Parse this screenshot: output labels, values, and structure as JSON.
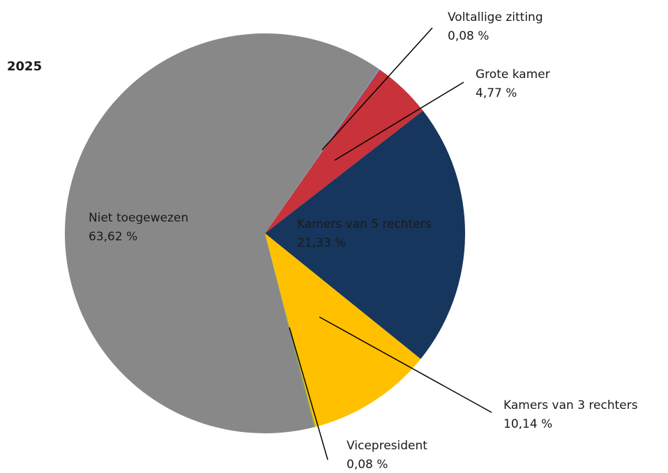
{
  "chart_data": {
    "type": "pie",
    "title": "2025",
    "categories": [
      "Voltallige zitting",
      "Grote kamer",
      "Kamers van 5 rechters",
      "Kamers van 3 rechters",
      "Vicepresident",
      "Niet toegewezen"
    ],
    "values": [
      0.08,
      4.77,
      21.33,
      10.14,
      0.08,
      63.62
    ],
    "value_labels": [
      "0,08 %",
      "4,77 %",
      "21,33 %",
      "10,14 %",
      "0,08 %",
      "63,62 %"
    ],
    "colors": [
      "#5b9bd5",
      "#c8323a",
      "#17365d",
      "#ffc000",
      "#70ad47",
      "#888888"
    ]
  }
}
